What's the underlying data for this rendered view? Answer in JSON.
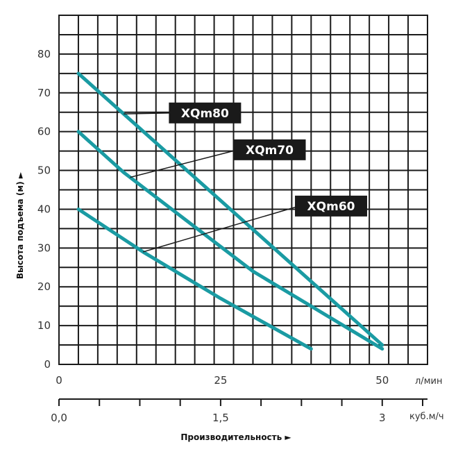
{
  "chart_data": {
    "type": "line",
    "ylabel": "Высота подъема (м) ►",
    "xlabel": "Производительность ►",
    "x_unit_primary": "л/мин",
    "x_unit_secondary": "куб.м/ч",
    "x_ticks_primary": [
      "0",
      "25",
      "50"
    ],
    "x_ticks_secondary": [
      "0,0",
      "1,5",
      "3"
    ],
    "y_ticks": [
      "0",
      "10",
      "20",
      "30",
      "40",
      "50",
      "60",
      "70",
      "80"
    ],
    "xlim": [
      0,
      57
    ],
    "ylim": [
      0,
      90
    ],
    "grid": true,
    "line_color": "#1a9ba3",
    "label_bg_color": "#1a1a1a",
    "series": [
      {
        "name": "XQm80",
        "x": [
          3,
          50
        ],
        "y": [
          75,
          5
        ],
        "label_anchor_x": 10,
        "label_x": 17,
        "label_y": 67.5
      },
      {
        "name": "XQm70",
        "x": [
          3,
          10,
          19,
          30,
          39,
          50
        ],
        "y": [
          60,
          49.5,
          38,
          24,
          15,
          4
        ],
        "label_anchor_x": 11,
        "label_x": 27,
        "label_y": 58
      },
      {
        "name": "XQm60",
        "x": [
          3,
          13,
          25,
          39
        ],
        "y": [
          40,
          29,
          17,
          4
        ],
        "label_anchor_x": 13,
        "label_x": 36.5,
        "label_y": 43.5
      }
    ]
  }
}
